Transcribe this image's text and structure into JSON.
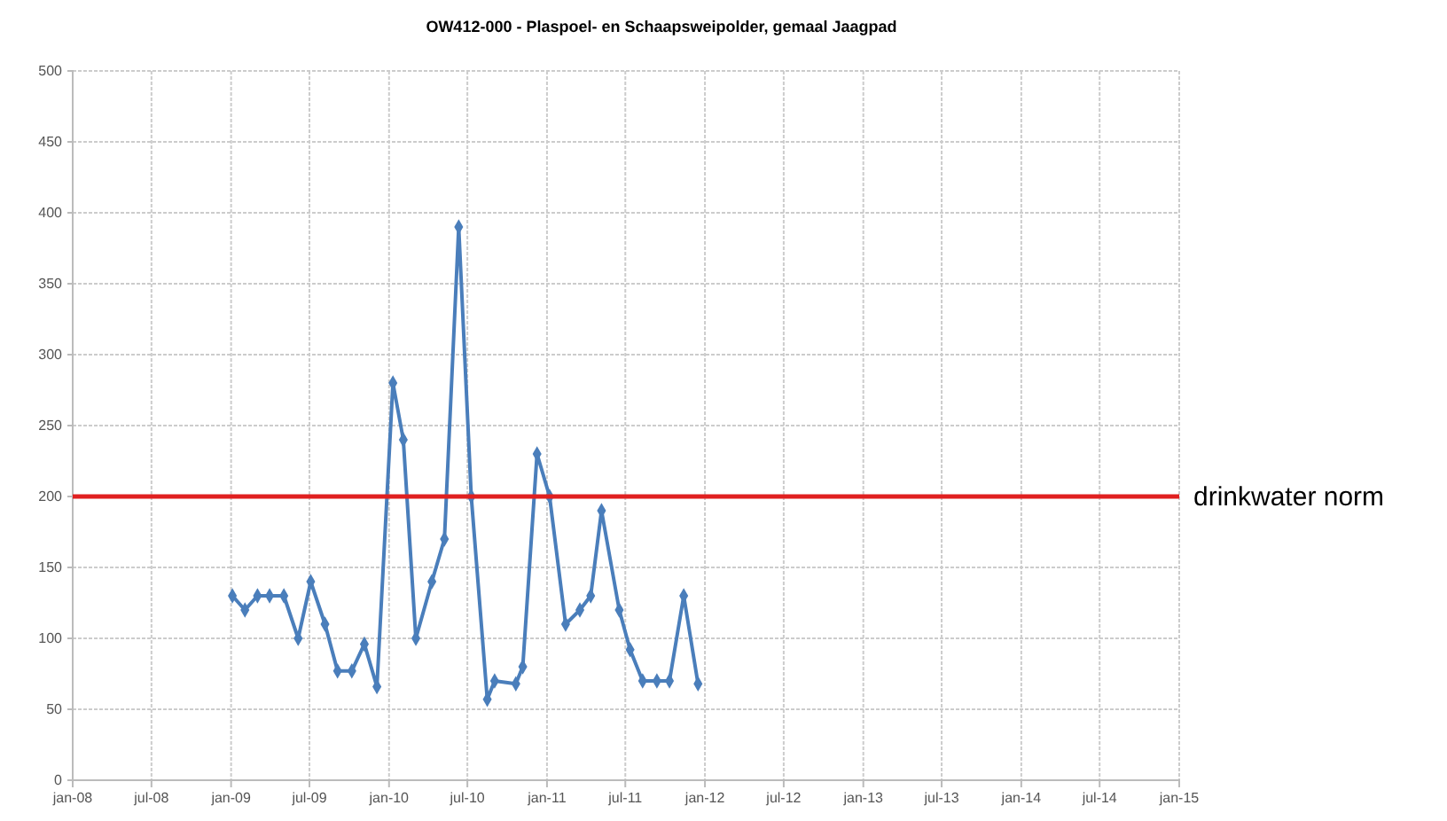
{
  "chart_data": {
    "type": "line",
    "title": "OW412-000 - Plaspoel- en Schaapsweipolder, gemaal Jaagpad",
    "x": [
      "2009-01-04",
      "2009-02-02",
      "2009-03-03",
      "2009-03-31",
      "2009-05-03",
      "2009-06-05",
      "2009-07-04",
      "2009-08-06",
      "2009-09-04",
      "2009-10-07",
      "2009-11-05",
      "2009-12-04",
      "2010-01-10",
      "2010-02-03",
      "2010-03-04",
      "2010-04-10",
      "2010-05-09",
      "2010-06-11",
      "2010-07-10",
      "2010-08-16",
      "2010-09-02",
      "2010-10-21",
      "2010-11-06",
      "2010-12-09",
      "2011-01-07",
      "2011-02-13",
      "2011-03-18",
      "2011-04-12",
      "2011-05-07",
      "2011-06-17",
      "2011-07-12",
      "2011-08-10",
      "2011-09-12",
      "2011-10-11",
      "2011-11-13",
      "2011-12-16"
    ],
    "series": [
      {
        "color": "#4a7ebb",
        "values": [
          130,
          120,
          130,
          130,
          130,
          100,
          140,
          110,
          77,
          77,
          96,
          66,
          280,
          240,
          100,
          140,
          170,
          390,
          200,
          57,
          70,
          68,
          80,
          230,
          200,
          110,
          120,
          130,
          190,
          120,
          92,
          70,
          70,
          70,
          130,
          68
        ]
      }
    ],
    "xlim": [
      "2008-01-01",
      "2015-01-01"
    ],
    "xticks": [
      {
        "value": "2008-01-01",
        "label": "jan-08"
      },
      {
        "value": "2008-07-01",
        "label": "jul-08"
      },
      {
        "value": "2009-01-01",
        "label": "jan-09"
      },
      {
        "value": "2009-07-01",
        "label": "jul-09"
      },
      {
        "value": "2010-01-01",
        "label": "jan-10"
      },
      {
        "value": "2010-07-01",
        "label": "jul-10"
      },
      {
        "value": "2011-01-01",
        "label": "jan-11"
      },
      {
        "value": "2011-07-01",
        "label": "jul-11"
      },
      {
        "value": "2012-01-01",
        "label": "jan-12"
      },
      {
        "value": "2012-07-01",
        "label": "jul-12"
      },
      {
        "value": "2013-01-01",
        "label": "jan-13"
      },
      {
        "value": "2013-07-01",
        "label": "jul-13"
      },
      {
        "value": "2014-01-01",
        "label": "jan-14"
      },
      {
        "value": "2014-07-01",
        "label": "jul-14"
      },
      {
        "value": "2015-01-01",
        "label": "jan-15"
      }
    ],
    "ylim": [
      0,
      500
    ],
    "yticks": [
      0,
      50,
      100,
      150,
      200,
      250,
      300,
      350,
      400,
      450,
      500
    ],
    "grid": true,
    "marker": "diamond",
    "line_style": "solid",
    "ref_lines": [
      {
        "axis": "y",
        "value": 200,
        "label": "drinkwater norm",
        "color": "#e02020"
      }
    ]
  }
}
